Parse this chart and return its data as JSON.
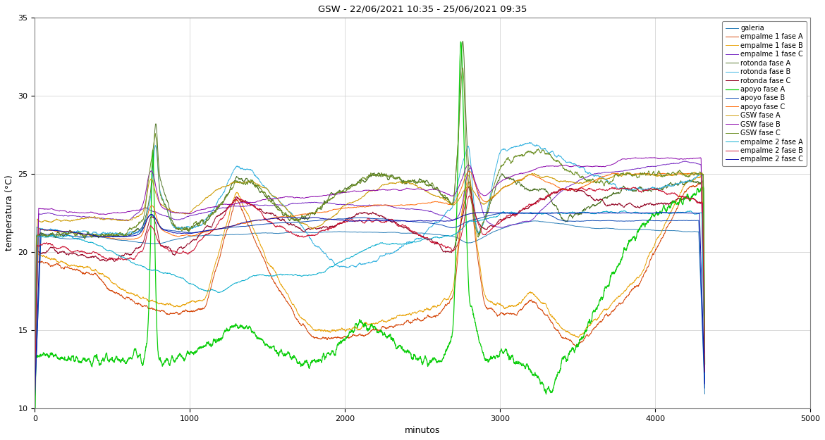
{
  "title": "GSW - 22/06/2021 10:35 - 25/06/2021 09:35",
  "xlabel": "minutos",
  "ylabel": "temperatura (°C)",
  "xlim": [
    0,
    5000
  ],
  "ylim": [
    10,
    35
  ],
  "yticks": [
    10,
    15,
    20,
    25,
    30,
    35
  ],
  "xticks": [
    0,
    1000,
    2000,
    3000,
    4000,
    5000
  ],
  "series": [
    {
      "label": "galeria",
      "color": "#1f77b4",
      "lw": 0.7
    },
    {
      "label": "empalme 1 fase A",
      "color": "#d44000",
      "lw": 0.7
    },
    {
      "label": "empalme 1 fase B",
      "color": "#e8a000",
      "lw": 0.7
    },
    {
      "label": "empalme 1 fase C",
      "color": "#7020c0",
      "lw": 0.7
    },
    {
      "label": "rotonda fase A",
      "color": "#4a7020",
      "lw": 0.7
    },
    {
      "label": "rotonda fase B",
      "color": "#30b0e0",
      "lw": 0.7
    },
    {
      "label": "rotonda fase C",
      "color": "#900020",
      "lw": 0.7
    },
    {
      "label": "apoyo fase A",
      "color": "#00cc00",
      "lw": 0.9
    },
    {
      "label": "apoyo fase B",
      "color": "#0040b0",
      "lw": 0.7
    },
    {
      "label": "apoyo fase C",
      "color": "#ff6600",
      "lw": 0.7
    },
    {
      "label": "GSW fase A",
      "color": "#cc9900",
      "lw": 0.7
    },
    {
      "label": "GSW fase B",
      "color": "#8800aa",
      "lw": 0.7
    },
    {
      "label": "GSW fase C",
      "color": "#6b8e23",
      "lw": 0.7
    },
    {
      "label": "empalme 2 fase A",
      "color": "#00aacc",
      "lw": 0.7
    },
    {
      "label": "empalme 2 fase B",
      "color": "#cc1030",
      "lw": 0.7
    },
    {
      "label": "empalme 2 fase C",
      "color": "#0000aa",
      "lw": 0.7
    }
  ],
  "seed": 42,
  "n_points": 4320
}
